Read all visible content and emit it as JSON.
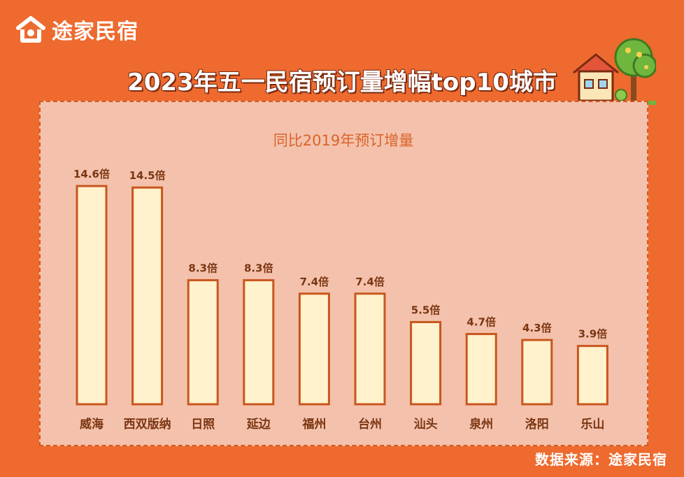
{
  "header": {
    "logo_text": "途家民宿",
    "title": "2023年五一民宿预订量增幅top10城市"
  },
  "footer": {
    "source": "数据来源：途家民宿"
  },
  "colors": {
    "background": "#ee6a2e",
    "panel": "#f4c2ac",
    "bar_fill": "#fff2cc",
    "bar_stroke": "#c8561f",
    "label": "#7a3512"
  },
  "chart_data": {
    "type": "bar",
    "title": "同比2019年预订增量",
    "categories": [
      "威海",
      "西双版纳",
      "日照",
      "延边",
      "福州",
      "台州",
      "汕头",
      "泉州",
      "洛阳",
      "乐山"
    ],
    "values": [
      14.6,
      14.5,
      8.3,
      8.3,
      7.4,
      7.4,
      5.5,
      4.7,
      4.3,
      3.9
    ],
    "value_labels": [
      "14.6倍",
      "14.5倍",
      "8.3倍",
      "8.3倍",
      "7.4倍",
      "7.4倍",
      "5.5倍",
      "4.7倍",
      "4.3倍",
      "3.9倍"
    ],
    "xlabel": "",
    "ylabel": "",
    "ylim": [
      0,
      14.6
    ],
    "grid": false,
    "legend": "none"
  }
}
